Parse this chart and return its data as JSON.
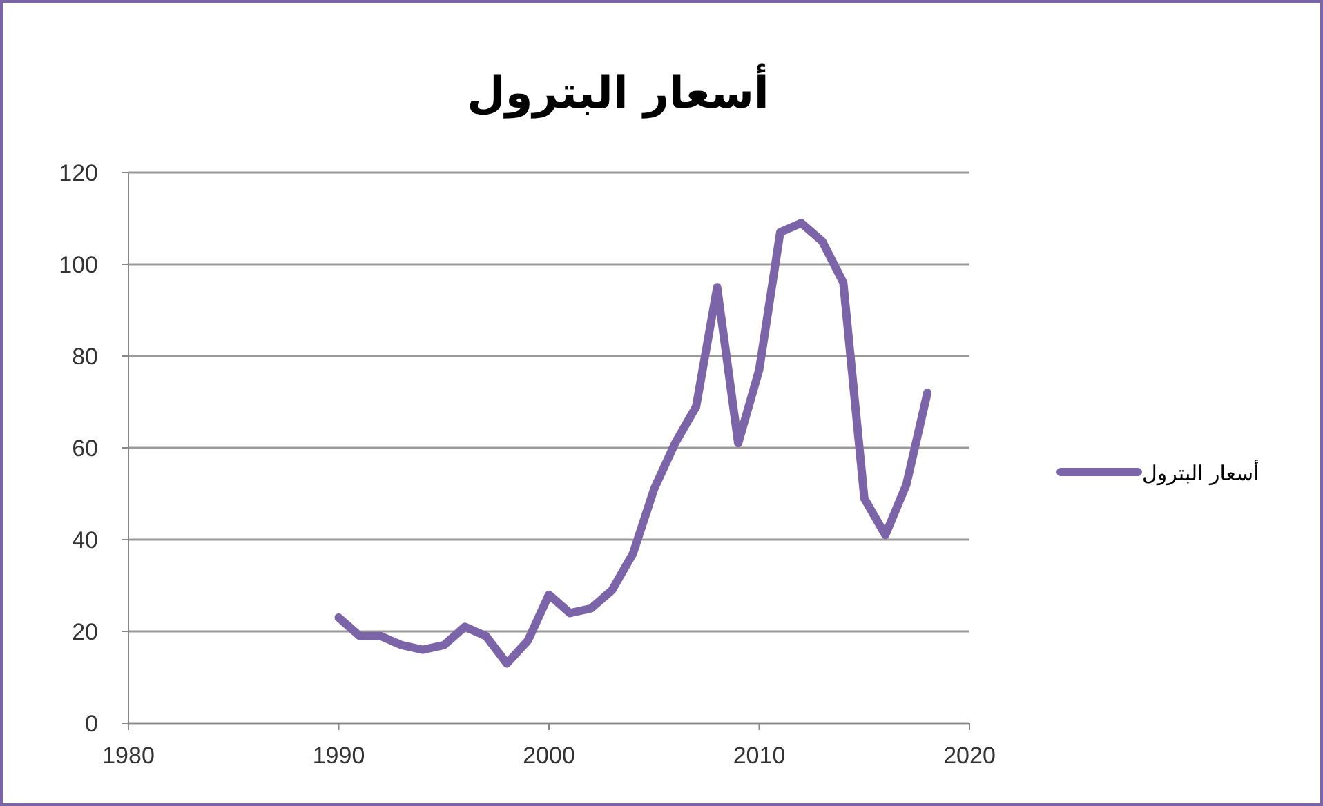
{
  "chart_data": {
    "type": "line",
    "title": "أسعار البترول",
    "x": [
      1990,
      1991,
      1992,
      1993,
      1994,
      1995,
      1996,
      1997,
      1998,
      1999,
      2000,
      2001,
      2002,
      2003,
      2004,
      2005,
      2006,
      2007,
      2008,
      2009,
      2010,
      2011,
      2012,
      2013,
      2014,
      2015,
      2016,
      2017,
      2018
    ],
    "series": [
      {
        "name": "أسعار البترول",
        "color": "#7b64a8",
        "values": [
          23,
          19,
          19,
          17,
          16,
          17,
          21,
          19,
          13,
          18,
          28,
          24,
          25,
          29,
          37,
          51,
          61,
          69,
          95,
          61,
          77,
          107,
          109,
          105,
          96,
          49,
          41,
          52,
          72
        ]
      }
    ],
    "xlim": [
      1980,
      2020
    ],
    "xticks": [
      1980,
      1990,
      2000,
      2010,
      2020
    ],
    "ylim": [
      0,
      120
    ],
    "yticks": [
      0,
      20,
      40,
      60,
      80,
      100,
      120
    ],
    "grid": "y",
    "legend": "right",
    "marker": "none",
    "line_style": "solid"
  }
}
